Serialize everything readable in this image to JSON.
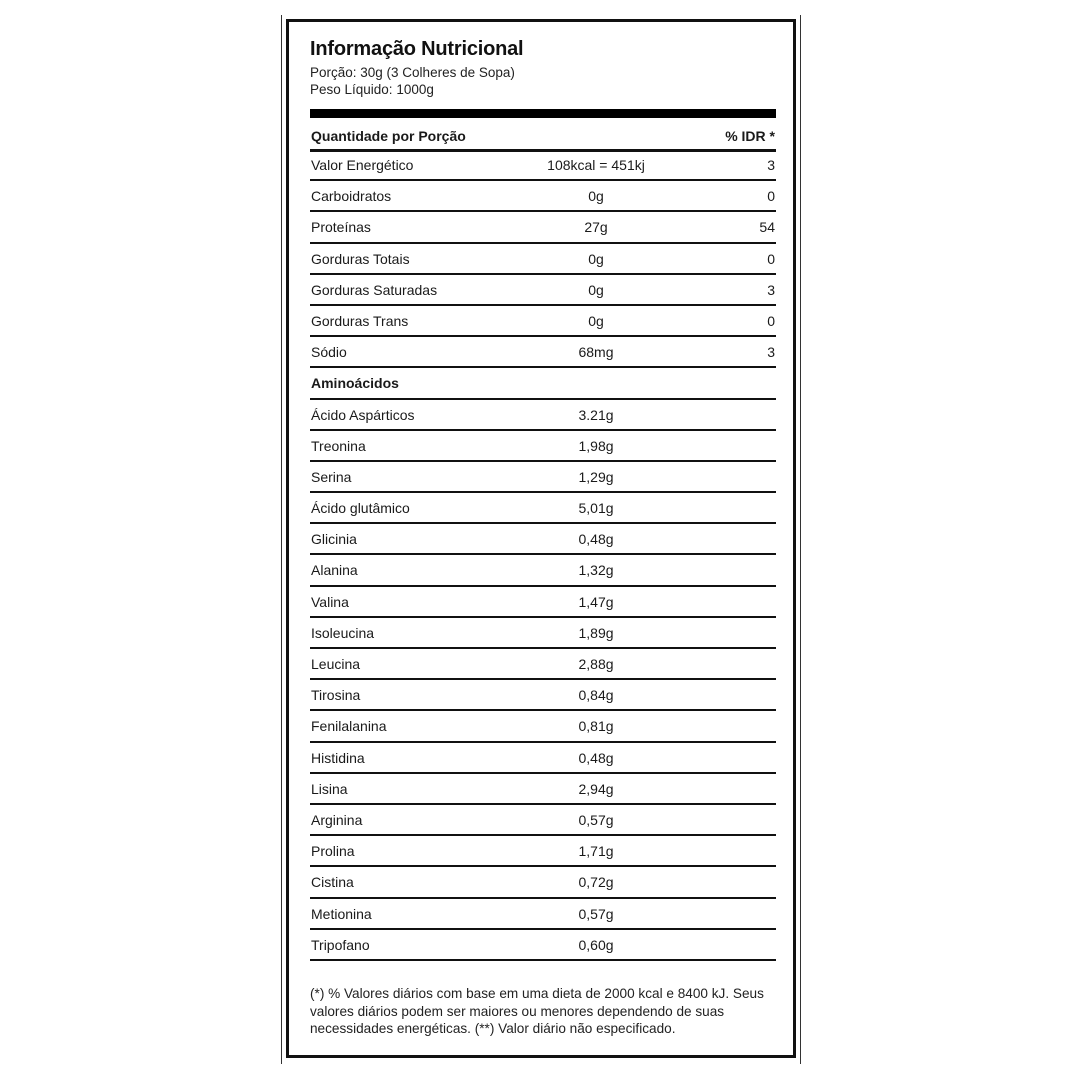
{
  "title": "Informação Nutricional",
  "portion": "Porção: 30g (3 Colheres de Sopa)",
  "net_weight": "Peso Líquido: 1000g",
  "header": {
    "label": "Quantidade por Porção",
    "idr": "% IDR *"
  },
  "rows": [
    {
      "name": "Valor Energético",
      "value": "108kcal = 451kj",
      "idr": "3"
    },
    {
      "name": "Carboidratos",
      "value": "0g",
      "idr": "0"
    },
    {
      "name": "Proteínas",
      "value": "27g",
      "idr": "54"
    },
    {
      "name": "Gorduras Totais",
      "value": "0g",
      "idr": "0"
    },
    {
      "name": "Gorduras Saturadas",
      "value": "0g",
      "idr": "3"
    },
    {
      "name": "Gorduras Trans",
      "value": "0g",
      "idr": "0"
    },
    {
      "name": "Sódio",
      "value": "68mg",
      "idr": "3"
    },
    {
      "name": "Aminoácidos",
      "group": true
    },
    {
      "name": "Ácido Aspárticos",
      "value": "3.21g"
    },
    {
      "name": "Treonina",
      "value": "1,98g"
    },
    {
      "name": "Serina",
      "value": "1,29g"
    },
    {
      "name": "Ácido glutâmico",
      "value": "5,01g"
    },
    {
      "name": "Glicinia",
      "value": "0,48g"
    },
    {
      "name": "Alanina",
      "value": "1,32g"
    },
    {
      "name": "Valina",
      "value": "1,47g"
    },
    {
      "name": "Isoleucina",
      "value": "1,89g"
    },
    {
      "name": "Leucina",
      "value": "2,88g"
    },
    {
      "name": "Tirosina",
      "value": "0,84g"
    },
    {
      "name": "Fenilalanina",
      "value": "0,81g"
    },
    {
      "name": "Histidina",
      "value": "0,48g"
    },
    {
      "name": "Lisina",
      "value": "2,94g"
    },
    {
      "name": "Arginina",
      "value": "0,57g"
    },
    {
      "name": "Prolina",
      "value": "1,71g"
    },
    {
      "name": "Cistina",
      "value": "0,72g"
    },
    {
      "name": "Metionina",
      "value": "0,57g"
    },
    {
      "name": "Tripofano",
      "value": "0,60g"
    }
  ],
  "footnote": "(*) % Valores diários com base em uma dieta de 2000 kcal e 8400 kJ. Seus valores diários podem ser maiores ou menores dependendo de suas necessidades energéticas. (**) Valor diário não especificado."
}
